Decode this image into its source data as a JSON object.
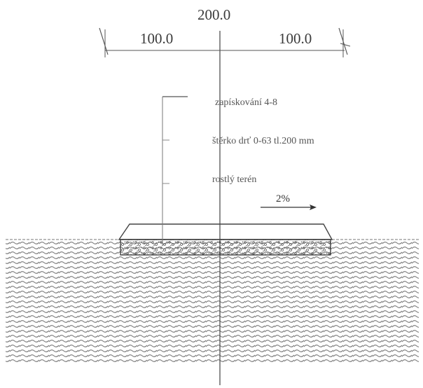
{
  "dimensions": {
    "total": "200.0",
    "left": "100.0",
    "right": "100.0"
  },
  "layers": [
    {
      "label": "zapískování 4-8"
    },
    {
      "label": "štěrko drť 0-63 tl.200 mm"
    },
    {
      "label": "rostlý terén"
    }
  ],
  "slope": {
    "label": "2%"
  },
  "colors": {
    "ink": "#3a3a3a",
    "soil_hatch": "#6a6a6a",
    "gravel": "#5a5a5a"
  }
}
